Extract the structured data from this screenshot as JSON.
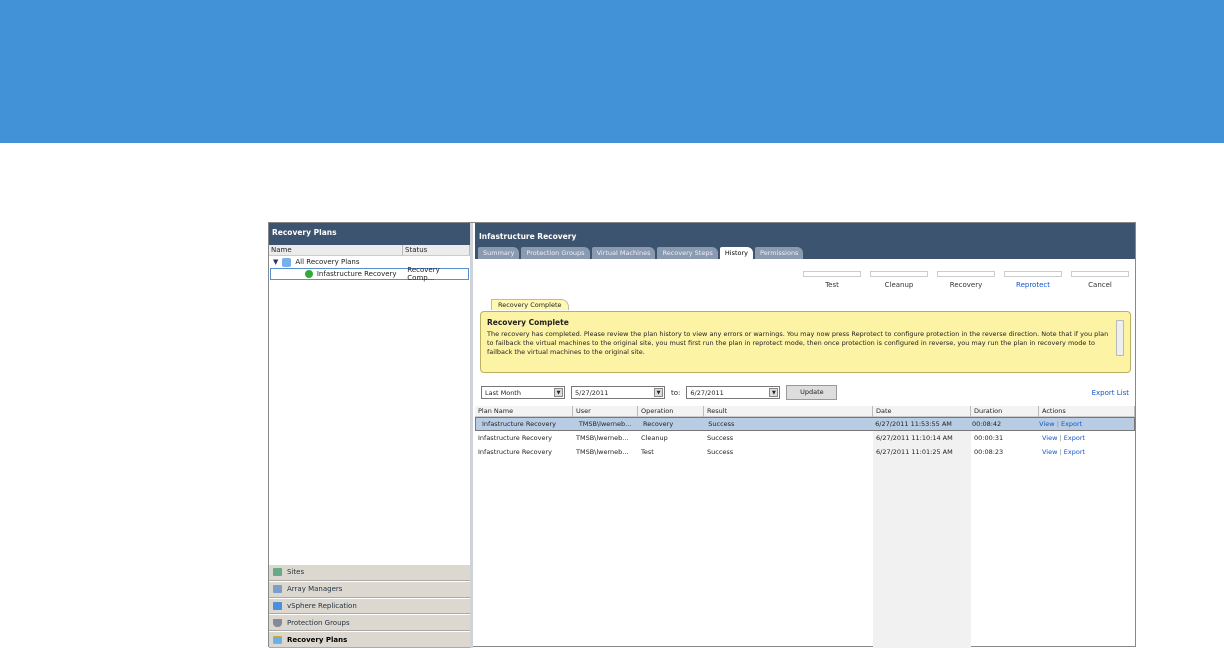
{
  "left_panel": {
    "title": "Recovery Plans",
    "columns": [
      "Name",
      "Status"
    ],
    "tree": {
      "root": "All Recovery Plans",
      "child": {
        "name": "Infastructure Recovery",
        "status": "Recovery Comp..."
      }
    },
    "nav": [
      {
        "label": "Sites",
        "icon": "sites-icon"
      },
      {
        "label": "Array Managers",
        "icon": "array-icon"
      },
      {
        "label": "vSphere Replication",
        "icon": "replication-icon"
      },
      {
        "label": "Protection Groups",
        "icon": "shield-icon"
      },
      {
        "label": "Recovery Plans",
        "icon": "recovery-plans-icon",
        "active": true
      }
    ]
  },
  "main": {
    "title": "Infastructure Recovery",
    "tabs": [
      "Summary",
      "Protection Groups",
      "Virtual Machines",
      "Recovery Steps",
      "History",
      "Permissions"
    ],
    "active_tab": "History",
    "actions": [
      "Test",
      "Cleanup",
      "Recovery",
      "Reprotect",
      "Cancel"
    ],
    "notice": {
      "tab": "Recovery Complete",
      "title": "Recovery Complete",
      "text": "The recovery has completed. Please review the plan history to view any errors or warnings. You may now press Reprotect to configure protection in the reverse direction. Note that if you plan to failback the virtual machines to the original site, you must first run the plan in reprotect mode, then once protection is configured in reverse, you may run the plan in recovery mode to failback the virtual machines to the original site."
    },
    "filter": {
      "range": "Last Month",
      "from": "5/27/2011",
      "to_label": "to:",
      "to": "6/27/2011",
      "update": "Update",
      "export_list": "Export List"
    },
    "table": {
      "columns": [
        "Plan Name",
        "User",
        "Operation",
        "Result",
        "Date",
        "Duration",
        "Actions"
      ],
      "rows": [
        {
          "plan": "Infastructure Recovery",
          "user": "TMSB\\lwerneb...",
          "op": "Recovery",
          "result": "Success",
          "date": "6/27/2011 11:53:55 AM",
          "duration": "00:08:42",
          "view": "View",
          "sep": "|",
          "export": "Export"
        },
        {
          "plan": "Infastructure Recovery",
          "user": "TMSB\\lwerneb...",
          "op": "Cleanup",
          "result": "Success",
          "date": "6/27/2011 11:10:14 AM",
          "duration": "00:00:31",
          "view": "View",
          "sep": "|",
          "export": "Export"
        },
        {
          "plan": "Infastructure Recovery",
          "user": "TMSB\\lwerneb...",
          "op": "Test",
          "result": "Success",
          "date": "6/27/2011 11:01:25 AM",
          "duration": "00:08:23",
          "view": "View",
          "sep": "|",
          "export": "Export"
        }
      ]
    }
  },
  "colors": {
    "banner": "#4192d6",
    "header": "#3d5470",
    "notice": "#fdf3a4",
    "link": "#1155cc",
    "selected_row": "#b8cde4"
  }
}
